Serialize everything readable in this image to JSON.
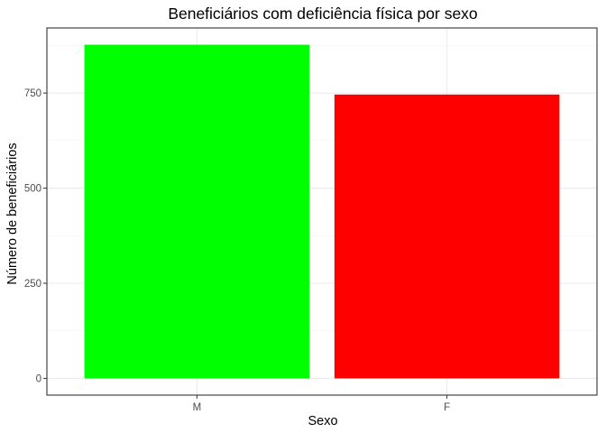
{
  "chart_data": {
    "type": "bar",
    "title": "Beneficiários com deficiência física por sexo",
    "xlabel": "Sexo",
    "ylabel": "Número de beneficiários",
    "categories": [
      "M",
      "F"
    ],
    "values": [
      877,
      746
    ],
    "colors": [
      "#00ff00",
      "#ff0000"
    ],
    "ylim": [
      -44,
      921
    ],
    "yticks": [
      0,
      250,
      500,
      750
    ],
    "ytick_labels": [
      "0",
      "250",
      "500",
      "750"
    ],
    "grid": true,
    "legend": "none"
  }
}
